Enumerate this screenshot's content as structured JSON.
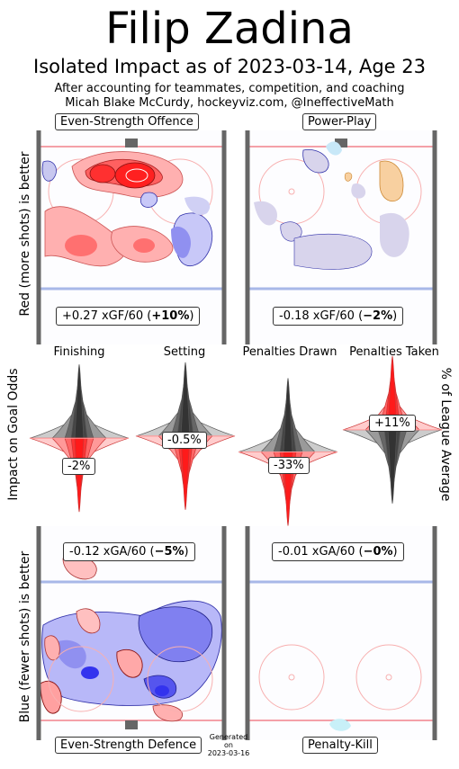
{
  "header": {
    "title": "Filip Zadina",
    "subtitle": "Isolated Impact as of 2023-03-14, Age 23",
    "note_line1": "After accounting for teammates, competition, and coaching",
    "note_line2": "Micah Blake McCurdy, hockeyviz.com, @IneffectiveMath"
  },
  "axis_labels": {
    "offence": "Red (more shots) is better",
    "odds": "Impact on Goal Odds",
    "league": "% of League Average",
    "defence": "Blue (fewer shots) is better"
  },
  "generated": {
    "line1": "Generated",
    "line2": "on",
    "line3": "2023-03-16"
  },
  "colors": {
    "red": "#ff3333",
    "blue": "#3333ff",
    "orange": "#f8c070",
    "rink": "#666666",
    "line_red": "#f4a0a8",
    "line_blue": "#a8b8e8"
  },
  "chart_data": [
    {
      "type": "heatmap",
      "panel": "Even-Strength Offence",
      "stat_prefix": "+0.27 xGF/60 (",
      "stat_bold": "+10%",
      "stat_suffix": ")",
      "xGF_per_60": 0.27,
      "pct": 10
    },
    {
      "type": "heatmap",
      "panel": "Power-Play",
      "stat_prefix": "-0.18 xGF/60 (",
      "stat_bold": "−2%",
      "stat_suffix": ")",
      "xGF_per_60": -0.18,
      "pct": -2
    },
    {
      "type": "violin",
      "categories": [
        "Finishing",
        "Setting",
        "Penalties Drawn",
        "Penalties Taken"
      ],
      "values": [
        -2,
        -0.5,
        -33,
        11
      ],
      "labels": [
        "-2%",
        "-0.5%",
        "-33%",
        "+11%"
      ]
    },
    {
      "type": "heatmap",
      "panel": "Even-Strength Defence",
      "stat_prefix": "-0.12 xGA/60 (",
      "stat_bold": "−5%",
      "stat_suffix": ")",
      "xGA_per_60": -0.12,
      "pct": -5
    },
    {
      "type": "heatmap",
      "panel": "Penalty-Kill",
      "stat_prefix": "-0.01 xGA/60 (",
      "stat_bold": "−0%",
      "stat_suffix": ")",
      "xGA_per_60": -0.01,
      "pct": 0
    }
  ]
}
